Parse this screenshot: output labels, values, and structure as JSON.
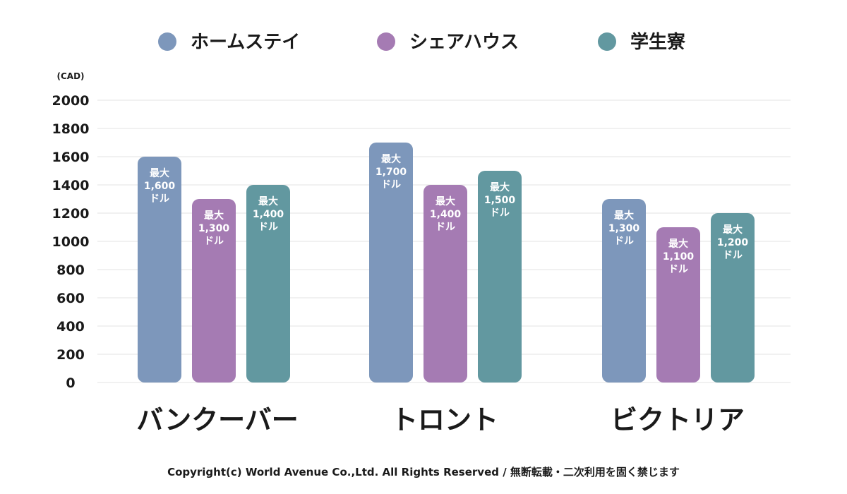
{
  "chart_data": {
    "type": "bar",
    "title": "",
    "unit_label": "(CAD)",
    "xlabel": "",
    "ylabel": "(CAD)",
    "ylim": [
      0,
      2000
    ],
    "yticks": [
      0,
      200,
      400,
      600,
      800,
      1000,
      1200,
      1400,
      1600,
      1800,
      2000
    ],
    "grid": true,
    "legend_position": "top",
    "categories": [
      "バンクーバー",
      "トロント",
      "ビクトリア"
    ],
    "series": [
      {
        "name": "ホームステイ",
        "color": "#7d97bb",
        "values": [
          1600,
          1700,
          1300
        ],
        "labels": [
          [
            "最大",
            "1,600",
            "ドル"
          ],
          [
            "最大",
            "1,700",
            "ドル"
          ],
          [
            "最大",
            "1,300",
            "ドル"
          ]
        ]
      },
      {
        "name": "シェアハウス",
        "color": "#a57bb3",
        "values": [
          1300,
          1400,
          1100
        ],
        "labels": [
          [
            "最大",
            "1,300",
            "ドル"
          ],
          [
            "最大",
            "1,400",
            "ドル"
          ],
          [
            "最大",
            "1,100",
            "ドル"
          ]
        ]
      },
      {
        "name": "学生寮",
        "color": "#6298a0",
        "values": [
          1400,
          1500,
          1200
        ],
        "labels": [
          [
            "最大",
            "1,400",
            "ドル"
          ],
          [
            "最大",
            "1,500",
            "ドル"
          ],
          [
            "最大",
            "1,200",
            "ドル"
          ]
        ]
      }
    ]
  },
  "footer": {
    "copyright": "Copyright(c) World Avenue Co.,Ltd. All Rights Reserved / 無断転載・二次利用を固く禁じます"
  }
}
